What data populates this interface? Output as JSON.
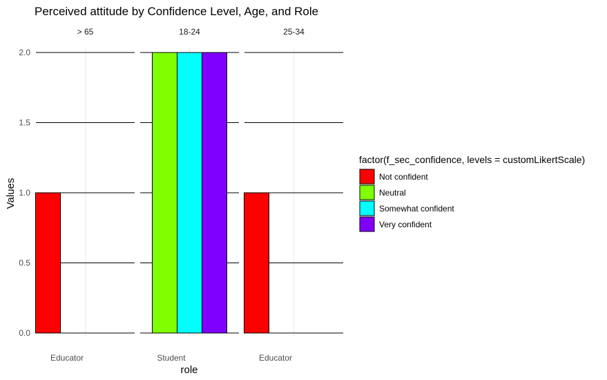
{
  "chart_data": {
    "type": "bar",
    "title": "Perceived attitude by Confidence Level, Age, and Role",
    "xlabel": "role",
    "ylabel": "Values",
    "ylim": [
      0,
      2
    ],
    "y_ticks": [
      "0.0",
      "0.5",
      "1.0",
      "1.5",
      "2.0"
    ],
    "legend": {
      "title": "factor(f_sec_confidence, levels = customLikertScale)",
      "position": "right",
      "entries": [
        {
          "label": "Not confident",
          "color": "#ff0000"
        },
        {
          "label": "Neutral",
          "color": "#80ff00"
        },
        {
          "label": "Somewhat confident",
          "color": "#00ffff"
        },
        {
          "label": "Very confident",
          "color": "#8000ff"
        }
      ]
    },
    "panels": [
      {
        "facet": "> 65",
        "category": "Educator",
        "bars": [
          {
            "level": "Not confident",
            "value": 1
          }
        ]
      },
      {
        "facet": "18-24",
        "category": "Student",
        "bars": [
          {
            "level": "Neutral",
            "value": 2
          },
          {
            "level": "Somewhat confident",
            "value": 2
          },
          {
            "level": "Very confident",
            "value": 2
          }
        ]
      },
      {
        "facet": "25-34",
        "category": "Educator",
        "bars": [
          {
            "level": "Not confident",
            "value": 1
          }
        ]
      }
    ]
  }
}
